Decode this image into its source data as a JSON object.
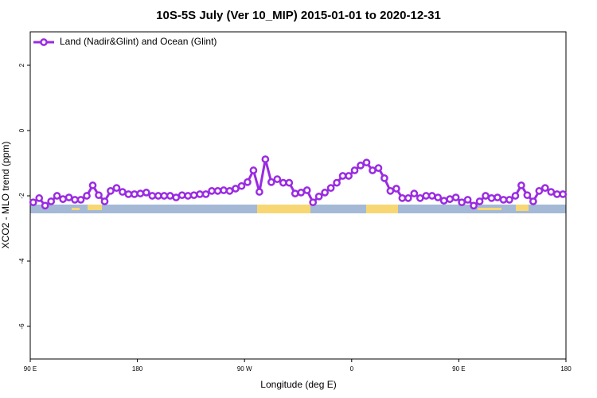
{
  "chart_data": {
    "type": "line",
    "title": "10S-5S July (Ver 10_MIP)   2015-01-01 to 2020-12-31",
    "x_label": "Longitude (deg E)",
    "y_label": "XCO2 - MLO trend (ppm)",
    "xlim": [
      90,
      540
    ],
    "xticks": [
      {
        "value": 90,
        "label": "90 E"
      },
      180,
      {
        "value": 270,
        "label": "90 W"
      },
      {
        "value": 360,
        "label": "0"
      },
      {
        "value": 450,
        "label": "90 E"
      },
      {
        "value": 540,
        "label": "180"
      }
    ],
    "ylim": [
      -7,
      3
    ],
    "yticks": [
      -6,
      -4,
      -2,
      0,
      2
    ],
    "legend": "top-left",
    "x": [
      92.5,
      97.5,
      102.5,
      107.5,
      112.5,
      117.5,
      122.5,
      127.5,
      132.5,
      137.5,
      142.5,
      147.5,
      152.5,
      157.5,
      162.5,
      167.5,
      172.5,
      177.5,
      182.5,
      187.5,
      192.5,
      197.5,
      202.5,
      207.5,
      212.5,
      217.5,
      222.5,
      227.5,
      232.5,
      237.5,
      242.5,
      247.5,
      252.5,
      257.5,
      262.5,
      267.5,
      272.5,
      277.5,
      282.5,
      287.5,
      292.5,
      297.5,
      302.5,
      307.5,
      312.5,
      317.5,
      322.5,
      327.5,
      332.5,
      337.5,
      342.5,
      347.5,
      352.5,
      357.5,
      362.5,
      367.5,
      372.5,
      377.5,
      382.5,
      387.5,
      392.5,
      397.5,
      402.5,
      407.5,
      412.5,
      417.5,
      422.5,
      427.5,
      432.5,
      437.5,
      442.5,
      447.5,
      452.5,
      457.5,
      462.5,
      467.5,
      472.5,
      477.5,
      482.5,
      487.5,
      492.5,
      497.5,
      502.5,
      507.5,
      512.5,
      517.5,
      522.5,
      527.5,
      532.5,
      537.5
    ],
    "series": [
      {
        "name": "Land (Nadir&Glint) and Ocean (Glint)",
        "color": "#9a2be2",
        "values": [
          -2.2,
          -2.07,
          -2.3,
          -2.17,
          -2.0,
          -2.1,
          -2.05,
          -2.12,
          -2.12,
          -2.0,
          -1.68,
          -1.98,
          -2.17,
          -1.85,
          -1.76,
          -1.88,
          -1.95,
          -1.95,
          -1.93,
          -1.9,
          -2.0,
          -2.0,
          -2.0,
          -2.0,
          -2.05,
          -1.98,
          -2.0,
          -1.98,
          -1.95,
          -1.95,
          -1.85,
          -1.85,
          -1.83,
          -1.85,
          -1.78,
          -1.7,
          -1.58,
          -1.22,
          -1.88,
          -0.88,
          -1.58,
          -1.49,
          -1.6,
          -1.6,
          -1.93,
          -1.9,
          -1.83,
          -2.2,
          -2.02,
          -1.9,
          -1.76,
          -1.6,
          -1.39,
          -1.39,
          -1.22,
          -1.07,
          -0.98,
          -1.22,
          -1.15,
          -1.46,
          -1.85,
          -1.78,
          -2.07,
          -2.07,
          -1.93,
          -2.07,
          -2.0,
          -2.0,
          -2.05,
          -2.15,
          -2.1,
          -2.05,
          -2.2,
          -2.12,
          -2.3,
          -2.17,
          -2.0,
          -2.07,
          -2.05,
          -2.12,
          -2.12,
          -2.0,
          -1.68,
          -1.98,
          -2.17,
          -1.85,
          -1.76,
          -1.88,
          -1.95,
          -1.95
        ]
      }
    ]
  }
}
